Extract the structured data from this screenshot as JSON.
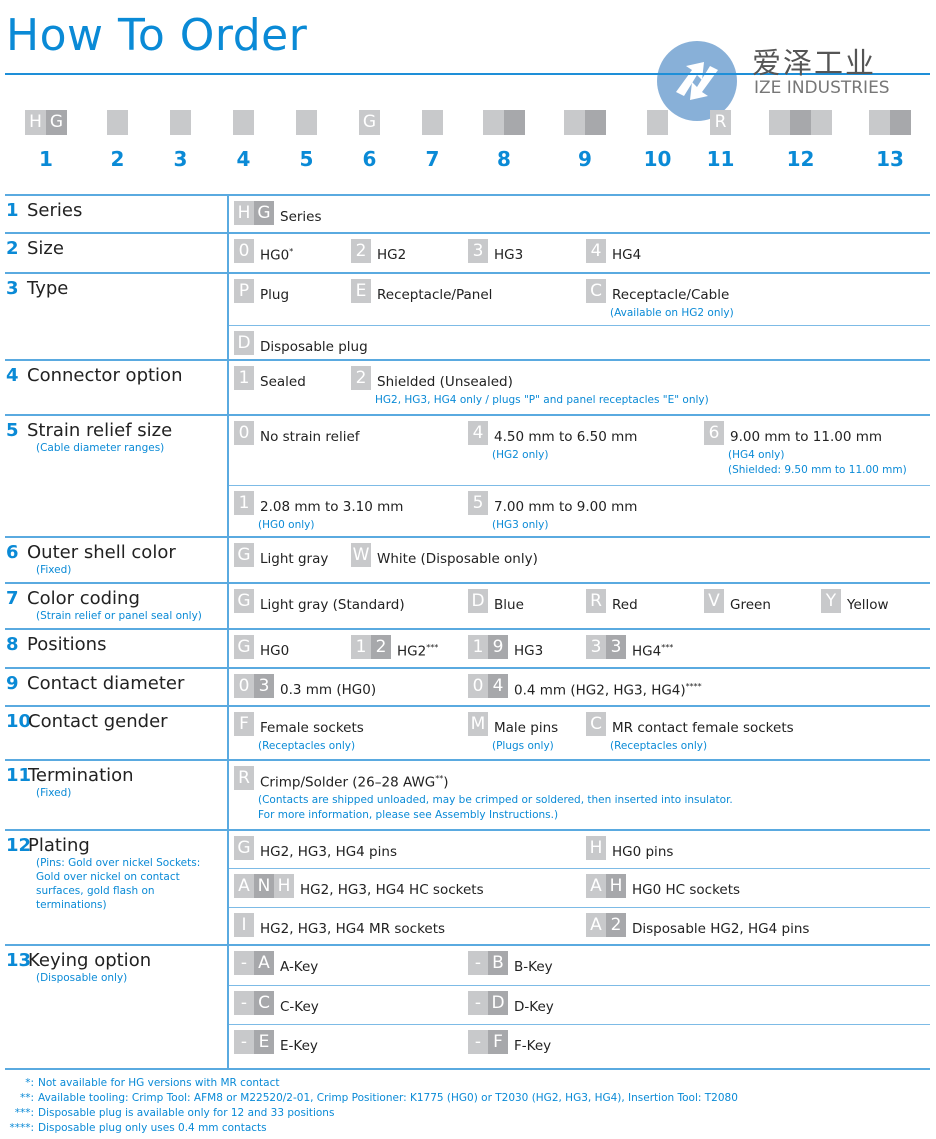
{
  "title": "How To Order",
  "logo": {
    "cn": "爱泽工业",
    "en": "IZE INDUSTRIES",
    "color": "#7ba7d4"
  },
  "colors": {
    "accent": "#0a8ad6",
    "box_light": "#c8c9cb",
    "box_dark": "#a7a8ab"
  },
  "header": [
    {
      "num": "1",
      "codes": [
        "H",
        "G"
      ]
    },
    {
      "num": "2",
      "codes": [
        ""
      ]
    },
    {
      "num": "3",
      "codes": [
        ""
      ]
    },
    {
      "num": "4",
      "codes": [
        ""
      ]
    },
    {
      "num": "5",
      "codes": [
        ""
      ]
    },
    {
      "num": "6",
      "codes": [
        "G"
      ]
    },
    {
      "num": "7",
      "codes": [
        ""
      ]
    },
    {
      "num": "8",
      "codes": [
        "",
        ""
      ]
    },
    {
      "num": "9",
      "codes": [
        "",
        ""
      ]
    },
    {
      "num": "10",
      "codes": [
        ""
      ]
    },
    {
      "num": "11",
      "codes": [
        "R"
      ]
    },
    {
      "num": "12",
      "codes": [
        "",
        "",
        ""
      ]
    },
    {
      "num": "13",
      "codes": [
        "",
        ""
      ]
    }
  ],
  "rows": [
    {
      "num": "1",
      "label": "Series",
      "note": "",
      "lines": [
        [
          {
            "col": 0,
            "codes": [
              "H",
              "G"
            ],
            "text": "Series"
          }
        ]
      ]
    },
    {
      "num": "2",
      "label": "Size",
      "note": "",
      "lines": [
        [
          {
            "col": 0,
            "codes": [
              "0"
            ],
            "text": "HG0",
            "sup": "*"
          },
          {
            "col": 1,
            "codes": [
              "2"
            ],
            "text": "HG2"
          },
          {
            "col": 2,
            "codes": [
              "3"
            ],
            "text": "HG3"
          },
          {
            "col": 3,
            "codes": [
              "4"
            ],
            "text": "HG4"
          }
        ]
      ]
    },
    {
      "num": "3",
      "label": "Type",
      "note": "",
      "lines": [
        [
          {
            "col": 0,
            "codes": [
              "P"
            ],
            "text": "Plug"
          },
          {
            "col": 1,
            "codes": [
              "E"
            ],
            "text": "Receptacle/Panel"
          },
          {
            "col": 3,
            "codes": [
              "C"
            ],
            "text": "Receptacle/Cable",
            "notes": [
              "(Available on HG2 only)"
            ]
          }
        ],
        [
          {
            "col": 0,
            "codes": [
              "D"
            ],
            "text": "Disposable plug"
          }
        ]
      ]
    },
    {
      "num": "4",
      "label": "Connector option",
      "note": "",
      "lines": [
        [
          {
            "col": 0,
            "codes": [
              "1"
            ],
            "text": "Sealed"
          },
          {
            "col": 1,
            "codes": [
              "2"
            ],
            "text": "Shielded (Unsealed)",
            "notes": [
              "HG2, HG3, HG4 only / plugs \"P\" and panel receptacles \"E\" only)"
            ]
          }
        ]
      ]
    },
    {
      "num": "5",
      "label": "Strain relief size",
      "note": "(Cable diameter ranges)",
      "lines": [
        [
          {
            "col": 0,
            "codes": [
              "0"
            ],
            "text": "No strain relief"
          },
          {
            "col": 2,
            "codes": [
              "4"
            ],
            "text": "4.50 mm to 6.50 mm",
            "notes": [
              "(HG2 only)"
            ]
          },
          {
            "col": 4,
            "codes": [
              "6"
            ],
            "text": "9.00 mm to 11.00 mm",
            "notes": [
              "(HG4 only)",
              "(Shielded: 9.50 mm to 11.00 mm)"
            ]
          }
        ],
        [
          {
            "col": 0,
            "codes": [
              "1"
            ],
            "text": "2.08 mm to 3.10 mm",
            "notes": [
              "(HG0 only)"
            ]
          },
          {
            "col": 2,
            "codes": [
              "5"
            ],
            "text": "7.00 mm to 9.00 mm",
            "notes": [
              "(HG3 only)"
            ]
          }
        ]
      ]
    },
    {
      "num": "6",
      "label": "Outer shell color",
      "note": "(Fixed)",
      "lines": [
        [
          {
            "col": 0,
            "codes": [
              "G"
            ],
            "text": "Light gray"
          },
          {
            "col": 1,
            "codes": [
              "W"
            ],
            "text": "White (Disposable only)"
          }
        ]
      ]
    },
    {
      "num": "7",
      "label": "Color coding",
      "note": "(Strain relief or panel seal only)",
      "lines": [
        [
          {
            "col": 0,
            "codes": [
              "G"
            ],
            "text": "Light gray (Standard)"
          },
          {
            "col": 2,
            "codes": [
              "D"
            ],
            "text": "Blue"
          },
          {
            "col": 3,
            "codes": [
              "R"
            ],
            "text": "Red"
          },
          {
            "col": 4,
            "codes": [
              "V"
            ],
            "text": "Green"
          },
          {
            "col": 5,
            "codes": [
              "Y"
            ],
            "text": "Yellow"
          }
        ]
      ]
    },
    {
      "num": "8",
      "label": "Positions",
      "note": "",
      "lines": [
        [
          {
            "col": 0,
            "codes": [
              "G"
            ],
            "text": "HG0"
          },
          {
            "col": 1,
            "codes": [
              "1",
              "2"
            ],
            "text": "HG2",
            "sup": "***"
          },
          {
            "col": 2,
            "codes": [
              "1",
              "9"
            ],
            "text": "HG3"
          },
          {
            "col": 3,
            "codes": [
              "3",
              "3"
            ],
            "text": "HG4",
            "sup": "***"
          }
        ]
      ]
    },
    {
      "num": "9",
      "label": "Contact diameter",
      "note": "",
      "lines": [
        [
          {
            "col": 0,
            "codes": [
              "0",
              "3"
            ],
            "text": "0.3 mm (HG0)"
          },
          {
            "col": 2,
            "codes": [
              "0",
              "4"
            ],
            "text": "0.4 mm (HG2, HG3, HG4)",
            "sup": "****"
          }
        ]
      ]
    },
    {
      "num": "10",
      "label": "Contact gender",
      "note": "",
      "lines": [
        [
          {
            "col": 0,
            "codes": [
              "F"
            ],
            "text": "Female sockets",
            "notes": [
              "(Receptacles only)"
            ]
          },
          {
            "col": 2,
            "codes": [
              "M"
            ],
            "text": "Male pins",
            "notes": [
              "(Plugs only)"
            ]
          },
          {
            "col": 3,
            "codes": [
              "C"
            ],
            "text": "MR contact female sockets",
            "notes": [
              "(Receptacles only)"
            ]
          }
        ]
      ]
    },
    {
      "num": "11",
      "label": "Termination",
      "note": "(Fixed)",
      "lines": [
        [
          {
            "col": 0,
            "codes": [
              "R"
            ],
            "text": "Crimp/Solder (26–28 AWG",
            "sup": "**",
            "after": ")",
            "notes": [
              "(Contacts are shipped unloaded, may be crimped or soldered, then inserted into insulator.",
              "For more information, please see Assembly Instructions.)"
            ]
          }
        ]
      ]
    },
    {
      "num": "12",
      "label": "Plating",
      "note": "(Pins: Gold over nickel Sockets: Gold over nickel on contact surfaces, gold flash on terminations)",
      "lines": [
        [
          {
            "col": 0,
            "codes": [
              "G"
            ],
            "text": "HG2, HG3, HG4 pins"
          },
          {
            "col": 3,
            "codes": [
              "H"
            ],
            "text": "HG0 pins"
          }
        ],
        [
          {
            "col": 0,
            "codes": [
              "A",
              "N",
              "H"
            ],
            "text": "HG2, HG3, HG4 HC sockets"
          },
          {
            "col": 3,
            "codes": [
              "A",
              "H"
            ],
            "text": "HG0 HC sockets"
          }
        ],
        [
          {
            "col": 0,
            "codes": [
              "I"
            ],
            "text": "HG2, HG3, HG4 MR sockets"
          },
          {
            "col": 3,
            "codes": [
              "A",
              "2"
            ],
            "text": "Disposable HG2, HG4 pins"
          }
        ]
      ]
    },
    {
      "num": "13",
      "label": "Keying option",
      "note": "(Disposable only)",
      "lines": [
        [
          {
            "col": 0,
            "codes": [
              "-",
              "A"
            ],
            "text": "A-Key"
          },
          {
            "col": 2,
            "codes": [
              "-",
              "B"
            ],
            "text": "B-Key"
          }
        ],
        [
          {
            "col": 0,
            "codes": [
              "-",
              "C"
            ],
            "text": "C-Key"
          },
          {
            "col": 2,
            "codes": [
              "-",
              "D"
            ],
            "text": "D-Key"
          }
        ],
        [
          {
            "col": 0,
            "codes": [
              "-",
              "E"
            ],
            "text": "E-Key"
          },
          {
            "col": 2,
            "codes": [
              "-",
              "F"
            ],
            "text": "F-Key"
          }
        ]
      ]
    }
  ],
  "footnotes": [
    {
      "mark": "*:",
      "text": "Not available for HG versions with MR contact"
    },
    {
      "mark": "**:",
      "text": "Available tooling: Crimp Tool: AFM8 or M22520/2-01, Crimp Positioner: K1775 (HG0) or T2030 (HG2, HG3, HG4), Insertion Tool: T2080"
    },
    {
      "mark": "***:",
      "text": "Disposable plug is available only for 12 and 33 positions"
    },
    {
      "mark": "****:",
      "text": "Disposable plug only uses 0.4 mm contacts"
    }
  ]
}
